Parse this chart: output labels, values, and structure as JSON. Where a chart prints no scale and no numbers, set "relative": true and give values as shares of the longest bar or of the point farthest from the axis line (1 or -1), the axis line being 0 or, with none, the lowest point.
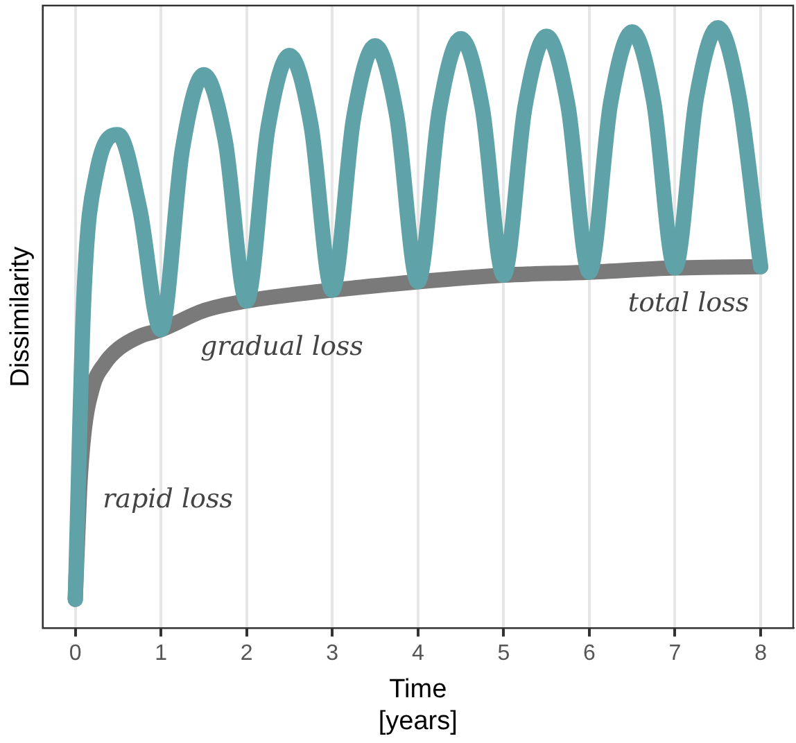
{
  "chart_data": {
    "type": "line",
    "relative": true,
    "xlabel": "Time\n[years]",
    "ylabel": "Dissimilarity",
    "xlim": [
      -0.38,
      8.38
    ],
    "xticks": [
      0,
      1,
      2,
      3,
      4,
      5,
      6,
      7,
      8
    ],
    "grid": "x",
    "legend": false,
    "marker": "none",
    "line_style": "solid",
    "series": [
      {
        "color": "#5fa3a8",
        "x": [
          0,
          0.1,
          0.25,
          0.5,
          0.75,
          1,
          1.25,
          1.5,
          1.75,
          2,
          2.25,
          2.5,
          2.75,
          3,
          3.25,
          3.5,
          3.75,
          4,
          4.25,
          4.5,
          4.75,
          5,
          5.25,
          5.5,
          5.75,
          6,
          6.25,
          6.5,
          6.75,
          7,
          7.25,
          7.5,
          7.75,
          8
        ],
        "values": [
          0.048,
          0.55,
          0.76,
          0.822,
          0.7,
          0.497,
          0.797,
          0.922,
          0.812,
          0.545,
          0.834,
          0.954,
          0.839,
          0.563,
          0.851,
          0.97,
          0.855,
          0.577,
          0.863,
          0.982,
          0.867,
          0.588,
          0.869,
          0.986,
          0.871,
          0.593,
          0.876,
          0.993,
          0.878,
          0.6,
          0.883,
          1,
          0.883,
          0.602
        ]
      },
      {
        "color": "#7a7a7a",
        "x": [
          0,
          0.05,
          0.1,
          0.2,
          0.35,
          0.5,
          0.75,
          1,
          1.5,
          2,
          2.5,
          3,
          4,
          5,
          6,
          7,
          8
        ],
        "values": [
          0.048,
          0.229,
          0.323,
          0.4,
          0.442,
          0.465,
          0.486,
          0.497,
          0.529,
          0.545,
          0.555,
          0.563,
          0.577,
          0.588,
          0.593,
          0.6,
          0.602
        ]
      }
    ],
    "annotations": [
      "rapid loss",
      "gradual loss",
      "total loss"
    ]
  }
}
